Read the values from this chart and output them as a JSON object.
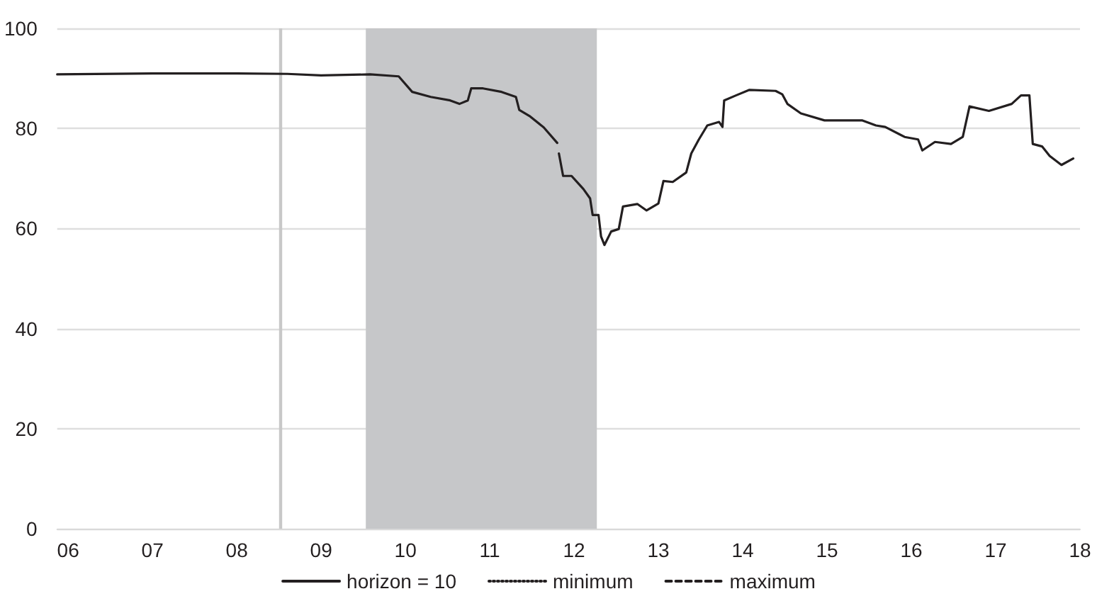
{
  "chart_data": {
    "type": "line",
    "series": [
      {
        "name": "horizon = 10",
        "color": "#231f20",
        "line_style": "solid",
        "x": [
          2005.87,
          2007,
          2008,
          2008.6,
          2009,
          2009.58,
          2009.92,
          2010.08,
          2010.3,
          2010.53,
          2010.64,
          2010.74,
          2010.78,
          2010.92,
          2011.14,
          2011.31,
          2011.35,
          2011.47,
          2011.64,
          2011.8,
          2011.81,
          2011.82,
          2011.87,
          2011.97,
          2012.11,
          2012.19,
          2012.22,
          2012.29,
          2012.32,
          2012.36,
          2012.44,
          2012.53,
          2012.58,
          2012.75,
          2012.86,
          2013.0,
          2013.06,
          2013.17,
          2013.33,
          2013.39,
          2013.48,
          2013.58,
          2013.72,
          2013.76,
          2013.78,
          2013.92,
          2014.08,
          2014.39,
          2014.47,
          2014.53,
          2014.69,
          2014.97,
          2015.42,
          2015.58,
          2015.69,
          2015.92,
          2016.08,
          2016.13,
          2016.28,
          2016.47,
          2016.61,
          2016.69,
          2016.92,
          2017.19,
          2017.3,
          2017.4,
          2017.44,
          2017.55,
          2017.64,
          2017.78,
          2017.92
        ],
        "values": [
          90.8,
          91.0,
          91.0,
          90.9,
          90.6,
          90.8,
          90.4,
          87.3,
          86.3,
          85.6,
          84.9,
          85.6,
          88.0,
          88.0,
          87.3,
          86.3,
          83.7,
          82.5,
          80.2,
          77.1,
          null,
          75.0,
          70.5,
          70.5,
          67.9,
          66.0,
          62.7,
          62.7,
          58.4,
          56.7,
          59.4,
          59.9,
          64.4,
          64.9,
          63.6,
          65.0,
          69.5,
          69.3,
          71.2,
          75.0,
          77.8,
          80.6,
          81.3,
          80.3,
          85.6,
          86.6,
          87.7,
          87.5,
          86.8,
          84.9,
          83.0,
          81.6,
          81.6,
          80.6,
          80.3,
          78.3,
          77.8,
          75.6,
          77.3,
          76.9,
          78.3,
          84.4,
          83.5,
          84.9,
          86.6,
          86.6,
          76.9,
          76.4,
          74.5,
          72.7,
          74.0
        ]
      },
      {
        "name": "minimum",
        "color": "#231f20",
        "line_style": "dotted"
      },
      {
        "name": "maximum",
        "color": "#231f20",
        "line_style": "dashed"
      }
    ],
    "xlim": [
      2005.87,
      2018
    ],
    "xticks": [
      {
        "value": 2006,
        "label": "06"
      },
      {
        "value": 2007,
        "label": "07"
      },
      {
        "value": 2008,
        "label": "08"
      },
      {
        "value": 2009,
        "label": "09"
      },
      {
        "value": 2010,
        "label": "10"
      },
      {
        "value": 2011,
        "label": "11"
      },
      {
        "value": 2012,
        "label": "12"
      },
      {
        "value": 2013,
        "label": "13"
      },
      {
        "value": 2014,
        "label": "14"
      },
      {
        "value": 2015,
        "label": "15"
      },
      {
        "value": 2016,
        "label": "16"
      },
      {
        "value": 2017,
        "label": "17"
      },
      {
        "value": 2018,
        "label": "18"
      }
    ],
    "ylim": [
      0,
      100
    ],
    "yticks": [
      0,
      20,
      40,
      60,
      80,
      100
    ],
    "grid": "y",
    "legend": "bottom",
    "marker": "none",
    "ref_lines": [
      {
        "axis": "x",
        "value": 2008.52,
        "color": "#c8c8c8"
      }
    ],
    "bands": [
      {
        "axis": "x",
        "from": 2009.53,
        "to": 2012.27,
        "color": "#c6c7c9"
      }
    ]
  }
}
